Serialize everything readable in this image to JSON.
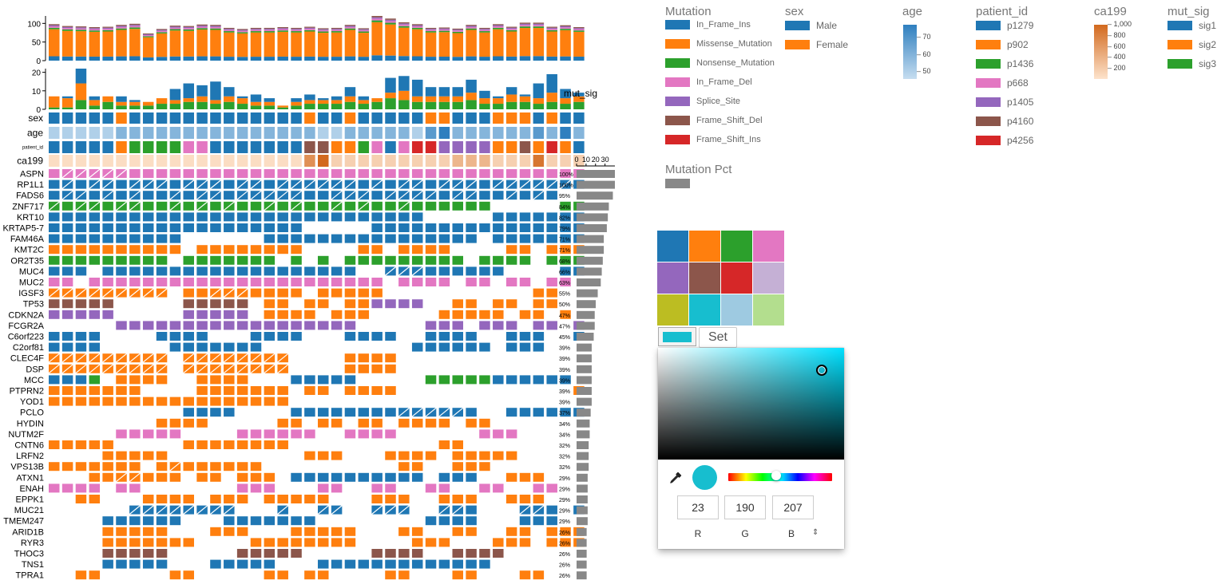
{
  "chart_data": {
    "type": "heatmap",
    "title": "",
    "samples_count": 40,
    "genes": [
      "ASPN",
      "RP1L1",
      "FADS6",
      "ZNF717",
      "KRT10",
      "KRTAP5-7",
      "FAM46A",
      "KMT2C",
      "OR2T35",
      "MUC4",
      "MUC2",
      "IGSF3",
      "TP53",
      "CDKN2A",
      "FCGR2A",
      "C6orf223",
      "C2orf81",
      "CLEC4F",
      "DSP",
      "MCC",
      "PTPRN2",
      "YOD1",
      "PCLO",
      "HYDIN",
      "NUTM2F",
      "CNTN6",
      "LRFN2",
      "VPS13B",
      "ATXN1",
      "ENAH",
      "EPPK1",
      "MUC21",
      "TMEM247",
      "ARID1B",
      "RYR3",
      "THOC3",
      "TNS1",
      "TPRA1"
    ],
    "gene_percentages": [
      "100%",
      "100%",
      "95%",
      "84%",
      "82%",
      "79%",
      "71%",
      "71%",
      "68%",
      "66%",
      "63%",
      "55%",
      "50%",
      "47%",
      "47%",
      "45%",
      "39%",
      "39%",
      "39%",
      "39%",
      "39%",
      "39%",
      "37%",
      "34%",
      "34%",
      "32%",
      "32%",
      "32%",
      "29%",
      "29%",
      "29%",
      "29%",
      "29%",
      "26%",
      "26%",
      "26%",
      "26%",
      "26%"
    ],
    "gene_mutation_counts": [
      38,
      38,
      36,
      32,
      31,
      30,
      27,
      27,
      26,
      25,
      24,
      21,
      19,
      18,
      18,
      17,
      15,
      15,
      15,
      15,
      15,
      15,
      14,
      13,
      13,
      12,
      12,
      12,
      11,
      11,
      11,
      11,
      11,
      10,
      10,
      10,
      10,
      10
    ],
    "oncoprint_matrix": [
      "DDDDDDDDDDDDDDDDDDDDDDDDDDDDDDDDDDDDDDDD",
      "AAAAAAAAAAAAAAAAAAAAAAAAAAAAAAAAAAAAAAAA",
      "AAAAAAAAAAAAAAAAAAAAAAAAAAAAAAAAAAAAAA..",
      "CCCCCCCCCCCCCCCCCCCCCCCCCCCCCCCCC.....CC",
      "AAAAAAAAAAAAAAAAAAAAAAAAAAAA.....AAAAAAA",
      "AAAAAAAAAAAAAAAAAAA.....AAAAAAAAAAAAAAAA",
      "AAAAAAAAAA......AAAAAAAAAAAAAAAA.AAAAAAA",
      "BBBBBBBBBB.BBBBBBBB....BB.BBBB....BB.BBB",
      "CCCCCCCCC.CCCCCCC.C.C.CCCCCCCCC.CCCC.CCC",
      "AAA.AAAAAAAAAAAAAAAAAAA..AAAAAAAAA....AA",
      "DD.DDDDDDDDDDDDDDDDDDDDDD.DDDD.DD.DD.DD.",
      "BBBBBBBBB.BBBBBBBBB.BBBBB...........BB..",
      "FFFFF.....FFFFF.BB.BB.BBEEEE..BB.BB.BB..",
      "EEEEE.....EEEEE.BBBB.BBB.....BBBBB.BB.B.",
      ".....EEEEEEEEEEEEEEEEEE.....EEE.EEE.EE.E",
      "AAAA....AAAA...AAAA...AAAA..AAAA..AAA..A",
      "AAAA.....AAAAAAA...........AAAAAA.AAA...",
      "BBBBBBBBB.BBBBBBBB....BBBB..............",
      "BBBBBBBBB.BBBBBBBB....BBBB..............",
      "AAAC.BBBB..BBBB...AAAAA.....CCCCCAAAAAA.",
      "BBBBBBB....BBBBBBB.BB.BBBB.............B",
      "BBBBBBBBBBBBBBBBBB......................",
      "..........AAAA....AAAAAAAAAAAAAA..AAAAAA",
      "........BBBB.....BB.BB.BB.BBBB.BB.......",
      ".....DDDDD....DDDDDD..DDDD......DDD.....",
      "BBBBB.....BBBBBBBB...........BB.........",
      "....BBBBB..........BBB...BBBB.BBBBB.....",
      "BBBBBBB.BBBBBBBB..........BB..BBB.......",
      "...BBBBBBB.BB.BBB.AAAAAAAAAA.AAA..BBB...",
      "DDDD.DD.......DDD...DD..DD..DD..DD..DD..",
      "..BB...BBBB.BBB.BBBBB...BBB..BBB..BBB...",
      "......AAAAAAAA...A..AA..AAA..AAA...AAA.A",
      "....AAAAAA...AAAAAAA........AAAA...AAA..",
      "....BBBBB...BBB...BBBBB...BB..BB..BB.BBB",
      "....BBBBBBB....BBBBBBBB....BBB...BBB.BBB",
      "....FFFFF.....FFFFF.....FFFF..FFFF......",
      "....AAAAA...AAAAA...AAAAAAAAAAAAA.......",
      "..BB.....BB.....BB.BB....BB...BB...BB..."
    ],
    "hatched_cells": {
      "0": [
        1,
        2,
        3,
        4,
        5
      ],
      "1": [
        1,
        3,
        4,
        6,
        7,
        8,
        10,
        11,
        12,
        14,
        15,
        17,
        18,
        19,
        20,
        21,
        22,
        24,
        26,
        27,
        29,
        30,
        31,
        33,
        34,
        35,
        36,
        37,
        38
      ],
      "2": [
        1,
        2,
        4,
        6,
        9,
        11,
        12,
        14,
        15,
        16,
        17,
        18,
        21,
        22,
        23,
        25,
        26,
        27,
        28,
        30,
        31,
        34,
        36
      ],
      "3": [
        0,
        2,
        3,
        5,
        6,
        9,
        11,
        13,
        16,
        18,
        21,
        23,
        26
      ],
      "11": [
        0,
        1,
        2,
        3,
        4,
        5,
        6,
        7,
        8,
        12,
        13,
        14
      ],
      "17": [
        0,
        1,
        2,
        3,
        4,
        5,
        6,
        7,
        8,
        10,
        11,
        12,
        13,
        14,
        15,
        16,
        17
      ],
      "18": [
        0,
        1,
        2,
        3,
        4,
        5,
        6,
        7,
        8,
        10,
        11,
        12,
        13,
        14,
        15,
        16,
        17
      ],
      "22": [
        26,
        27,
        28,
        29,
        30
      ],
      "27": [
        9
      ],
      "28": [
        5,
        6
      ],
      "31": [
        6,
        7,
        8,
        9,
        10,
        11,
        12,
        13,
        17,
        20,
        21,
        24,
        25,
        26,
        29,
        30,
        35,
        36
      ],
      "9": [
        25,
        26,
        27
      ]
    },
    "mutation_types": {
      "A": "In_Frame_Ins",
      "B": "Missense_Mutation",
      "C": "Nonsense_Mutation",
      "D": "In_Frame_Del",
      "E": "Splice_Site",
      "F": "Frame_Shift_Del",
      "G": "Frame_Shift_Ins"
    },
    "top_bar": {
      "yticks": [
        0,
        50,
        100
      ],
      "ylim": [
        0,
        120
      ],
      "totals": [
        98,
        93,
        92,
        90,
        91,
        96,
        99,
        73,
        85,
        94,
        93,
        97,
        96,
        88,
        85,
        88,
        88,
        90,
        88,
        91,
        87,
        88,
        96,
        87,
        120,
        113,
        103,
        98,
        88,
        89,
        86,
        96,
        88,
        98,
        91,
        102,
        102,
        91,
        95,
        90
      ]
    },
    "sig_bar": {
      "label": "mut_sig",
      "yticks": [
        0,
        10,
        20
      ],
      "ylim": [
        0,
        22
      ],
      "series": [
        {
          "name": "sig1",
          "values": [
            0,
            1,
            8,
            2,
            0,
            3,
            1,
            0,
            0,
            6,
            8,
            6,
            10,
            5,
            1,
            4,
            2,
            0,
            2,
            3,
            1,
            2,
            5,
            2,
            0,
            8,
            8,
            9,
            5,
            5,
            5,
            7,
            4,
            1,
            4,
            1,
            8,
            10,
            5,
            2
          ]
        },
        {
          "name": "sig2",
          "values": [
            6,
            5,
            9,
            3,
            3,
            2,
            2,
            2,
            3,
            2,
            2,
            3,
            2,
            3,
            3,
            2,
            2,
            1,
            2,
            2,
            2,
            2,
            3,
            2,
            2,
            3,
            5,
            3,
            3,
            3,
            3,
            4,
            3,
            3,
            4,
            3,
            3,
            5,
            3,
            3
          ]
        },
        {
          "name": "sig3",
          "values": [
            1,
            1,
            5,
            2,
            4,
            2,
            2,
            2,
            3,
            3,
            4,
            4,
            3,
            4,
            3,
            2,
            2,
            1,
            2,
            3,
            3,
            3,
            4,
            3,
            4,
            6,
            5,
            4,
            4,
            4,
            4,
            5,
            3,
            3,
            4,
            4,
            3,
            4,
            3,
            4
          ]
        }
      ]
    },
    "annotations": {
      "sex": [
        1,
        1,
        1,
        1,
        1,
        2,
        1,
        1,
        1,
        1,
        1,
        1,
        1,
        1,
        1,
        1,
        1,
        1,
        1,
        2,
        1,
        1,
        2,
        1,
        1,
        1,
        1,
        1,
        2,
        2,
        1,
        1,
        1,
        2,
        2,
        2,
        1,
        2,
        1,
        1
      ],
      "age": [
        50,
        50,
        50,
        50,
        50,
        60,
        60,
        60,
        60,
        60,
        60,
        60,
        60,
        60,
        60,
        60,
        60,
        60,
        60,
        60,
        50,
        50,
        60,
        60,
        60,
        60,
        60,
        50,
        70,
        80,
        60,
        60,
        60,
        60,
        60,
        60,
        70,
        60,
        80,
        60
      ],
      "patient_id": [
        1,
        1,
        1,
        1,
        1,
        2,
        3,
        3,
        3,
        3,
        4,
        4,
        1,
        1,
        1,
        1,
        1,
        1,
        1,
        6,
        6,
        2,
        2,
        3,
        4,
        1,
        4,
        7,
        7,
        5,
        5,
        5,
        5,
        2,
        2,
        6,
        2,
        7,
        2,
        1
      ],
      "ca199": [
        100,
        100,
        100,
        100,
        100,
        100,
        100,
        100,
        100,
        100,
        100,
        100,
        100,
        100,
        100,
        100,
        100,
        100,
        100,
        700,
        1000,
        200,
        200,
        200,
        200,
        200,
        200,
        200,
        200,
        200,
        400,
        400,
        400,
        200,
        200,
        200,
        900,
        200,
        200,
        200
      ]
    },
    "annotation_labels": [
      "sex",
      "age",
      "patient_id",
      "ca199"
    ],
    "pct_axis_ticks": [
      "0",
      "10",
      "20",
      "30"
    ]
  },
  "legend": {
    "mutation": {
      "title": "Mutation",
      "items": [
        {
          "label": "In_Frame_Ins",
          "color": "#1f77b4"
        },
        {
          "label": "Missense_Mutation",
          "color": "#ff7f0e"
        },
        {
          "label": "Nonsense_Mutation",
          "color": "#2ca02c"
        },
        {
          "label": "In_Frame_Del",
          "color": "#e377c2"
        },
        {
          "label": "Splice_Site",
          "color": "#9467bd"
        },
        {
          "label": "Frame_Shift_Del",
          "color": "#8c564b"
        },
        {
          "label": "Frame_Shift_Ins",
          "color": "#d62728"
        }
      ]
    },
    "sex": {
      "title": "sex",
      "items": [
        {
          "label": "Male",
          "color": "#1f77b4"
        },
        {
          "label": "Female",
          "color": "#ff7f0e"
        }
      ]
    },
    "age": {
      "title": "age",
      "ticks": [
        "70",
        "60",
        "50"
      ]
    },
    "patient_id": {
      "title": "patient_id",
      "items": [
        {
          "label": "p1279",
          "color": "#1f77b4"
        },
        {
          "label": "p902",
          "color": "#ff7f0e"
        },
        {
          "label": "p1436",
          "color": "#2ca02c"
        },
        {
          "label": "p668",
          "color": "#e377c2"
        },
        {
          "label": "p1405",
          "color": "#9467bd"
        },
        {
          "label": "p4160",
          "color": "#8c564b"
        },
        {
          "label": "p4256",
          "color": "#d62728"
        }
      ]
    },
    "ca199": {
      "title": "ca199",
      "ticks": [
        "1,000",
        "800",
        "600",
        "400",
        "200"
      ]
    },
    "mut_sig": {
      "title": "mut_sig",
      "items": [
        {
          "label": "sig1",
          "color": "#1f77b4"
        },
        {
          "label": "sig2",
          "color": "#ff7f0e"
        },
        {
          "label": "sig3",
          "color": "#2ca02c"
        }
      ]
    },
    "mutation_pct": {
      "title": "Mutation Pct",
      "color": "#888888"
    }
  },
  "color_picker": {
    "palette": [
      "#1f77b4",
      "#ff7f0e",
      "#2ca02c",
      "#e377c2",
      "#9467bd",
      "#8c564b",
      "#d62728",
      "#c5b0d5",
      "#bcbd22",
      "#17becf",
      "#9ecae1",
      "#b3de8e"
    ],
    "current_color": "#17becf",
    "set_label": "Set",
    "r": "23",
    "g": "190",
    "b": "207",
    "r_label": "R",
    "g_label": "G",
    "b_label": "B",
    "hue_color": "#00e1ff",
    "dropper_icon": "eyedropper-icon",
    "toggle_icon": "toggle-format-icon"
  }
}
